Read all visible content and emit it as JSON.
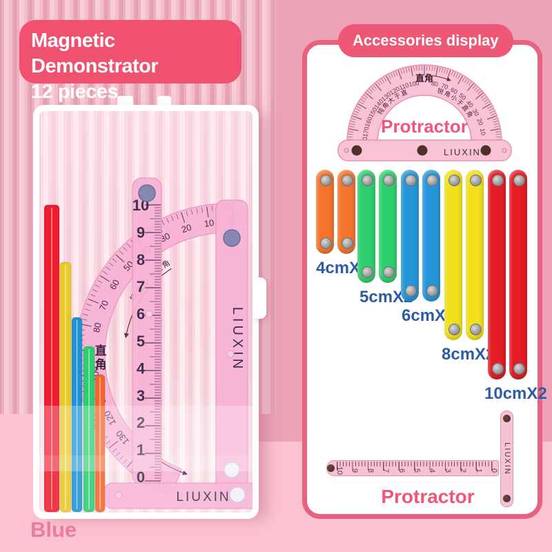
{
  "title": {
    "line1": "Magnetic Demonstrator",
    "line2": "12 pieces"
  },
  "left_box": {
    "caption": "Blue",
    "demonstrator": {
      "brand": "LIUXIN",
      "right_angle_label": "直角",
      "acute_note": "锐角小于直角",
      "ruler_numbers": [
        "10",
        "9",
        "8",
        "7",
        "6",
        "5",
        "4",
        "3",
        "2",
        "1",
        "0"
      ],
      "arc_degree_labels": [
        0,
        10,
        20,
        30,
        40,
        50,
        60,
        70,
        80,
        100,
        110,
        120,
        130
      ]
    },
    "sticks": [
      {
        "color": "#ec1d2e"
      },
      {
        "color": "#e7ca25"
      },
      {
        "color": "#1d93d4"
      },
      {
        "color": "#2ccf70"
      },
      {
        "color": "#f3652c"
      }
    ]
  },
  "panel": {
    "header": "Accessories display",
    "top_protractor": {
      "name": "Protractor",
      "brand": "LIUXIN",
      "right_angle_label": "直角",
      "obtuse_note": "钝角大于直角",
      "acute_note": "锐角小于直角",
      "degree_labels": [
        180,
        170,
        160,
        150,
        140,
        130,
        120,
        110,
        100,
        80,
        70,
        60,
        50,
        40,
        30,
        20,
        10,
        0
      ]
    },
    "sticks": [
      {
        "label": "4cmX2",
        "cm": 4,
        "color": "#f4742c"
      },
      {
        "label": "5cmX2",
        "cm": 5,
        "color": "#2ed06e"
      },
      {
        "label": "6cmX2",
        "cm": 6,
        "color": "#2597d8"
      },
      {
        "label": "8cmX2",
        "cm": 8,
        "color": "#f2e01d"
      },
      {
        "label": "10cmX2",
        "cm": 10,
        "color": "#e51c26"
      }
    ],
    "bottom_ruler": {
      "name": "Protractor",
      "brand": "LIUXIN",
      "numbers": [
        "10",
        "9",
        "8",
        "7",
        "6",
        "5",
        "4",
        "3",
        "2",
        "1",
        "0"
      ]
    }
  },
  "colors": {
    "title_badge": "#f0516f",
    "header_badge": "#ef5777",
    "panel_border": "#e8617e",
    "protractor_pink": "#f9c3d7",
    "label_blue": "#2d5ca6",
    "caption_pink": "#ee7b99",
    "protractor_text": "#f0567a"
  }
}
